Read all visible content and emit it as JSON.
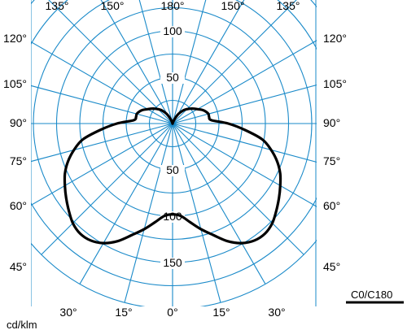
{
  "chart_data": {
    "type": "polar-luminous-intensity",
    "unit_label": "cd/klm",
    "angle_labels_top": [
      "135°",
      "150°",
      "180°",
      "150°",
      "135°"
    ],
    "angle_labels_left": [
      "120°",
      "105°",
      "90°",
      "75°",
      "60°",
      "45°"
    ],
    "angle_labels_right": [
      "120°",
      "105°",
      "90°",
      "75°",
      "60°",
      "45°"
    ],
    "angle_labels_bottom": [
      "30°",
      "15°",
      "0°",
      "15°",
      "30°"
    ],
    "radial_labels_upper": [
      "100",
      "50"
    ],
    "radial_labels_lower": [
      "50",
      "100",
      "150"
    ],
    "rmax": 200,
    "grid_angle_step_deg": 15,
    "grid_ring_step": 25,
    "grid_color": "#1a8ac9",
    "curve_color": "#000000",
    "series": [
      {
        "name": "C0/C180",
        "angles_deg": [
          0,
          5,
          10,
          15,
          20,
          25,
          30,
          35,
          40,
          45,
          50,
          55,
          60,
          65,
          70,
          75,
          80,
          85,
          90,
          95,
          100,
          105,
          110,
          115,
          120,
          125,
          130,
          135,
          140,
          145,
          150,
          155,
          160,
          165,
          170,
          175,
          180
        ],
        "intensity": [
          98,
          100,
          108,
          118,
          128,
          140,
          149,
          154,
          155,
          152,
          146,
          140,
          134,
          128,
          120,
          110,
          98,
          78,
          60,
          42,
          40,
          40,
          38,
          35,
          31,
          28,
          25,
          22,
          19,
          15,
          11,
          6,
          2,
          0,
          0,
          0,
          0
        ]
      }
    ]
  }
}
